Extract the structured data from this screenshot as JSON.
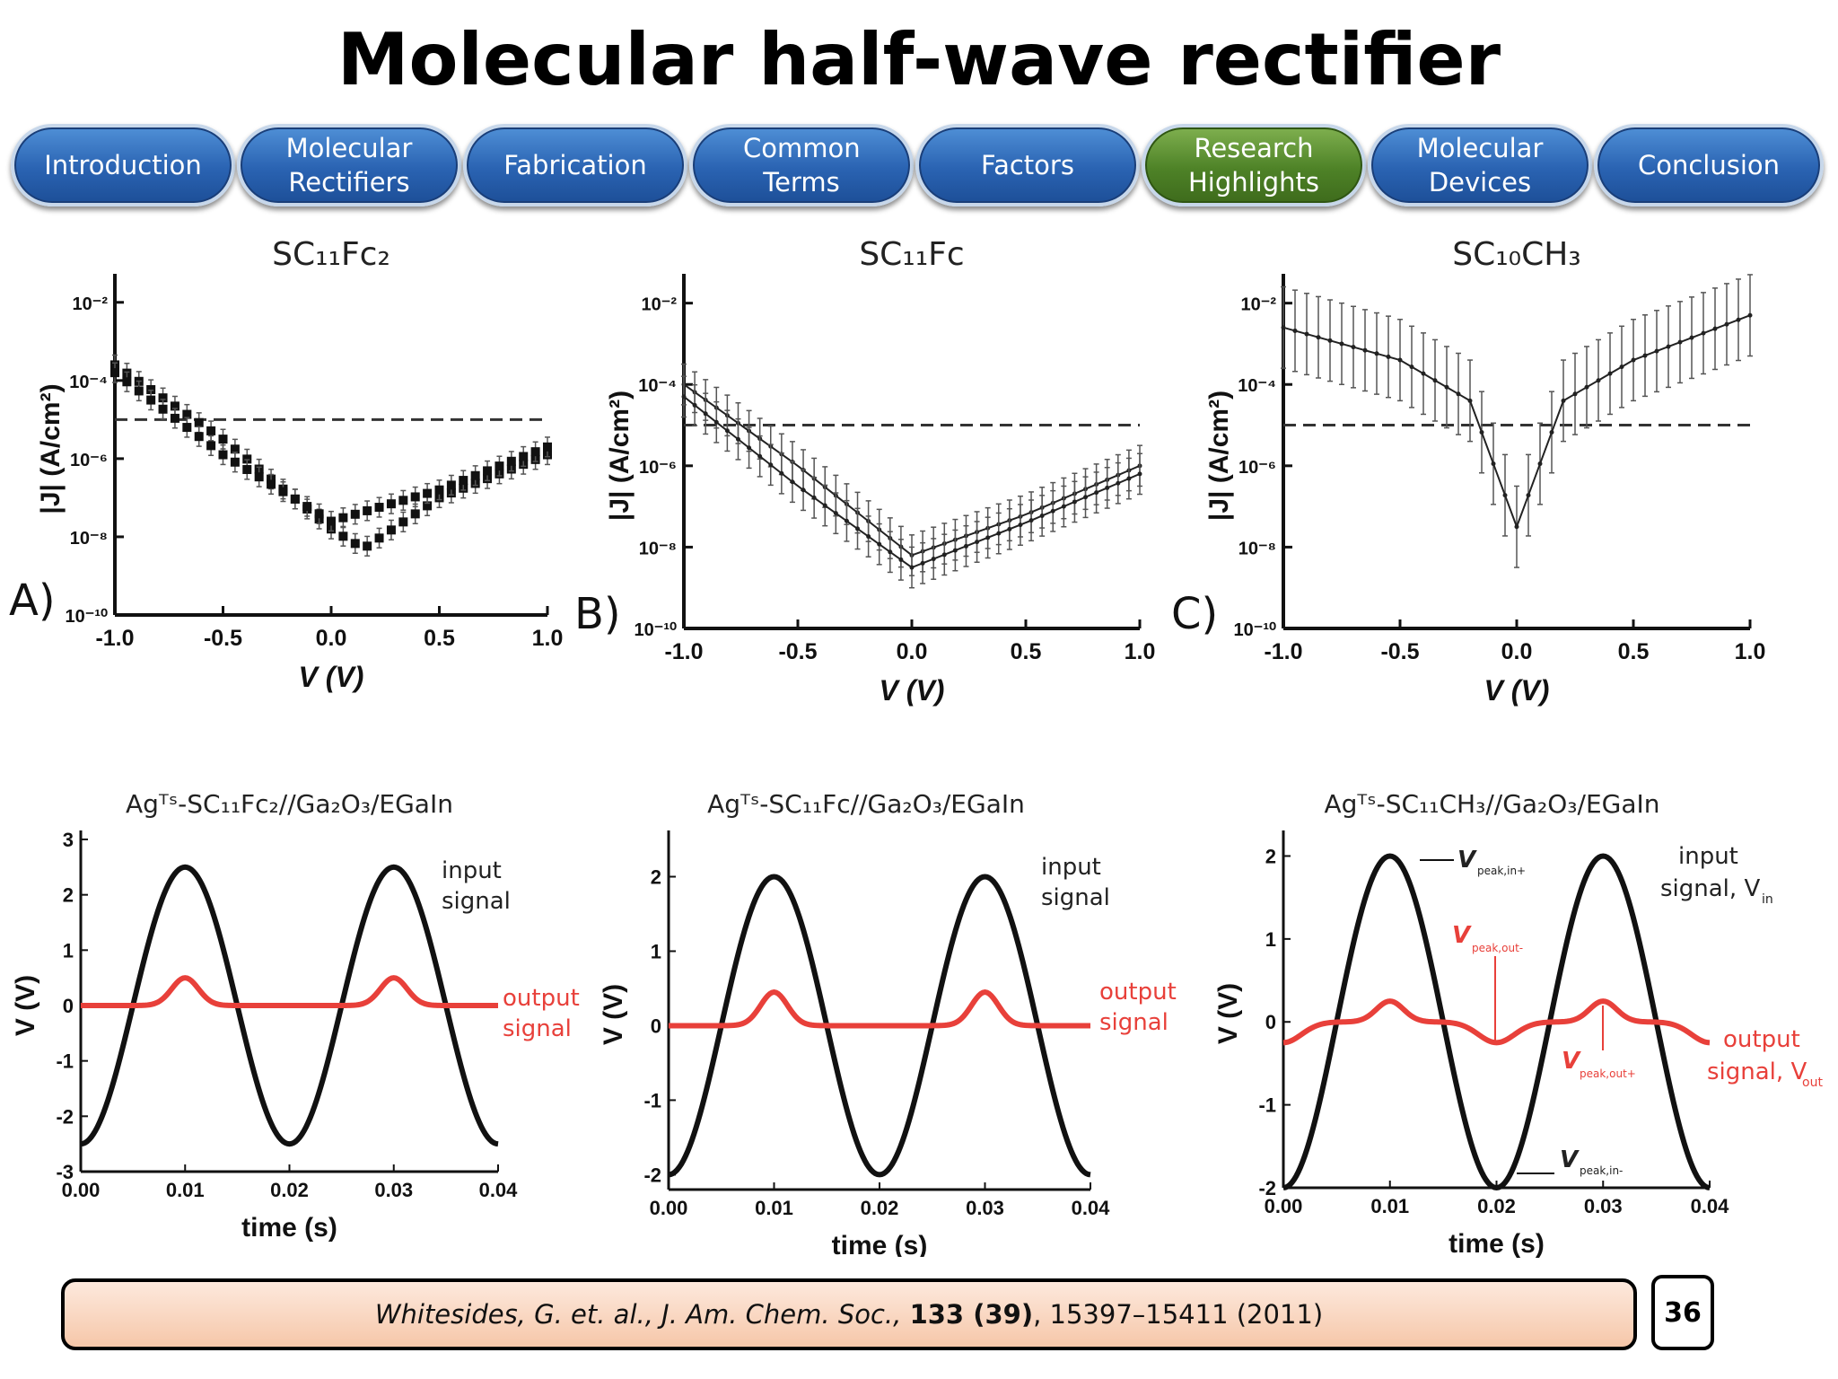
{
  "title": "Molecular half-wave rectifier",
  "nav": [
    {
      "label": "Introduction",
      "active": false
    },
    {
      "label": "Molecular Rectifiers",
      "active": false
    },
    {
      "label": "Fabrication",
      "active": false
    },
    {
      "label": "Common Terms",
      "active": false
    },
    {
      "label": "Factors",
      "active": false
    },
    {
      "label": "Research Highlights",
      "active": true
    },
    {
      "label": "Molecular Devices",
      "active": false
    },
    {
      "label": "Conclusion",
      "active": false
    }
  ],
  "chart_data": [
    {
      "type": "scatter",
      "panel": "A)",
      "title": "SC₁₁Fc₂",
      "xlabel": "V (V)",
      "ylabel": "|J| (A/cm²)",
      "xlim": [
        -1.0,
        1.0
      ],
      "ylim_log10": [
        -10,
        -1.5
      ],
      "y_scale": "log",
      "xticks": [
        "-1.0",
        "-0.5",
        "0.0",
        "0.5",
        "1.0"
      ],
      "yticks": [
        "10⁻²",
        "10⁻⁴",
        "10⁻⁶",
        "10⁻⁸",
        "10⁻¹⁰"
      ],
      "dashed_log10": -5,
      "series": [
        {
          "x": [
            -1.0,
            -0.5,
            0.0,
            0.15,
            0.5,
            1.0
          ],
          "log10_y": [
            -3.6,
            -5.5,
            -7.8,
            -8.3,
            -7.0,
            -5.9
          ]
        },
        {
          "x": [
            -1.0,
            -0.5,
            0.0,
            0.5,
            1.0
          ],
          "log10_y": [
            -3.8,
            -5.9,
            -7.6,
            -6.8,
            -5.7
          ]
        }
      ]
    },
    {
      "type": "line",
      "panel": "B)",
      "title": "SC₁₁Fc",
      "xlabel": "V (V)",
      "ylabel": "|J| (A/cm²)",
      "xlim": [
        -1.0,
        1.0
      ],
      "ylim_log10": [
        -10,
        -1.5
      ],
      "y_scale": "log",
      "xticks": [
        "-1.0",
        "-0.5",
        "0.0",
        "0.5",
        "1.0"
      ],
      "yticks": [
        "10⁻²",
        "10⁻⁴",
        "10⁻⁶",
        "10⁻⁸",
        "10⁻¹⁰"
      ],
      "dashed_log10": -5,
      "series": [
        {
          "x": [
            -1.0,
            -0.5,
            0.0,
            0.5,
            1.0
          ],
          "log10_y": [
            -4.0,
            -6.0,
            -8.2,
            -7.2,
            -6.0
          ]
        },
        {
          "x": [
            -1.0,
            -0.5,
            0.0,
            0.5,
            1.0
          ],
          "log10_y": [
            -4.3,
            -6.5,
            -8.5,
            -7.4,
            -6.2
          ]
        }
      ]
    },
    {
      "type": "line",
      "panel": "C)",
      "title": "SC₁₀CH₃",
      "xlabel": "V (V)",
      "ylabel": "|J| (A/cm²)",
      "xlim": [
        -1.0,
        1.0
      ],
      "ylim_log10": [
        -10,
        -1.5
      ],
      "y_scale": "log",
      "xticks": [
        "-1.0",
        "-0.5",
        "0.0",
        "0.5",
        "1.0"
      ],
      "yticks": [
        "10⁻²",
        "10⁻⁴",
        "10⁻⁶",
        "10⁻⁸",
        "10⁻¹⁰"
      ],
      "dashed_log10": -5,
      "series": [
        {
          "x": [
            -1.0,
            -0.5,
            -0.2,
            0.0,
            0.2,
            0.5,
            1.0
          ],
          "log10_y": [
            -2.6,
            -3.4,
            -4.4,
            -7.5,
            -4.4,
            -3.4,
            -2.3
          ]
        }
      ]
    },
    {
      "type": "line",
      "title": "Agᵀˢ-SC₁₁Fc₂//Ga₂O₃/EGaIn",
      "xlabel": "time (s)",
      "ylabel": "V (V)",
      "xlim": [
        0,
        0.04
      ],
      "ylim": [
        -3,
        3
      ],
      "xticks": [
        "0.00",
        "0.01",
        "0.02",
        "0.03",
        "0.04"
      ],
      "yticks": [
        "3",
        "2",
        "1",
        "0",
        "-1",
        "-2",
        "-3"
      ],
      "series": [
        {
          "name": "input signal",
          "amplitude": 2.5,
          "period": 0.02
        },
        {
          "name": "output signal",
          "peak": 0.5,
          "baseline": 0
        }
      ]
    },
    {
      "type": "line",
      "title": "Agᵀˢ-SC₁₁Fc//Ga₂O₃/EGaIn",
      "xlabel": "time (s)",
      "ylabel": "V (V)",
      "xlim": [
        0,
        0.04
      ],
      "ylim": [
        -2.2,
        2.5
      ],
      "xticks": [
        "0.00",
        "0.01",
        "0.02",
        "0.03",
        "0.04"
      ],
      "yticks": [
        "2",
        "1",
        "0",
        "-1",
        "-2"
      ],
      "series": [
        {
          "name": "input signal",
          "amplitude": 2.0,
          "period": 0.02
        },
        {
          "name": "output signal",
          "peak": 0.45,
          "baseline": 0
        }
      ]
    },
    {
      "type": "line",
      "title": "Agᵀˢ-SC₁₁CH₃//Ga₂O₃/EGaIn",
      "xlabel": "time (s)",
      "ylabel": "V (V)",
      "xlim": [
        0,
        0.04
      ],
      "ylim": [
        -2,
        2.2
      ],
      "xticks": [
        "0.00",
        "0.01",
        "0.02",
        "0.03",
        "0.04"
      ],
      "yticks": [
        "2",
        "1",
        "0",
        "-1",
        "-2"
      ],
      "series": [
        {
          "name": "input signal, Vᵢₙ",
          "amplitude": 2.0,
          "period": 0.02
        },
        {
          "name": "output signal, Vₒᵤₜ",
          "peak": 0.25,
          "trough": -0.25,
          "baseline": 0
        }
      ],
      "annotations": [
        "V peak,in+",
        "V peak,out-",
        "V peak,out+",
        "V peak,in-"
      ]
    }
  ],
  "labels": {
    "input_signal_1": "input",
    "input_signal_2": "signal",
    "output_signal_1": "output",
    "output_signal_2": "signal",
    "input_c_1": "input",
    "input_c_2": "signal, V",
    "output_c_1": "output",
    "output_c_2": "signal, V",
    "sub_in": "in",
    "sub_out": "out",
    "peak_in_plus": "peak,in+",
    "peak_out_minus": "peak,out-",
    "peak_out_plus": "peak,out+",
    "peak_in_minus": "peak,in-",
    "v_sym": "V"
  },
  "citation": {
    "authors": "Whitesides, G. et. al., J. Am. Chem. Soc., ",
    "volume": "133 (39)",
    "rest": ", 15397–15411 (2011)"
  },
  "page_number": "36",
  "colors": {
    "output": "#e8403a",
    "nav_blue": "#2a63b2",
    "nav_green": "#4e8227"
  }
}
